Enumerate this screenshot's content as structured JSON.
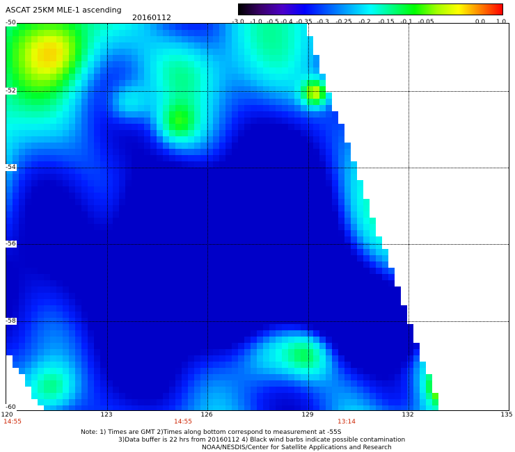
{
  "header": {
    "title": "ASCAT 25KM MLE-1 ascending",
    "date": "20160112"
  },
  "colorbar": {
    "labels": [
      "-3.0",
      "-1.0",
      "-0.5",
      "-0.4",
      "-0.35",
      "-0.3",
      "-0.25",
      "-0.2",
      "-0.15",
      "-0.1",
      "-0.05",
      "0.0",
      "1.0"
    ],
    "colors": [
      "#000000",
      "#3a006a",
      "#4b00c8",
      "#0000ff",
      "#0055ff",
      "#00aaff",
      "#00ffff",
      "#00ff80",
      "#00ff00",
      "#a0ff00",
      "#ffff00",
      "#ff8000",
      "#ff0000"
    ]
  },
  "axes": {
    "lat_labels": [
      "-50",
      "-52",
      "-54",
      "-56",
      "-58",
      "-60"
    ],
    "lon_labels": [
      "120",
      "123",
      "126",
      "129",
      "132",
      "135"
    ],
    "time_labels": [
      "14:55",
      "14:55",
      "13:14"
    ]
  },
  "notes": {
    "line1": "Note: 1) Times are GMT 2)Times along bottom correspond to measurement at -55S",
    "line2": "3)Data buffer is 22 hrs from 20160112 4) Black wind barbs indicate possible contamination",
    "line3": "NOAA/NESDIS/Center for Satellite Applications and Research"
  }
}
